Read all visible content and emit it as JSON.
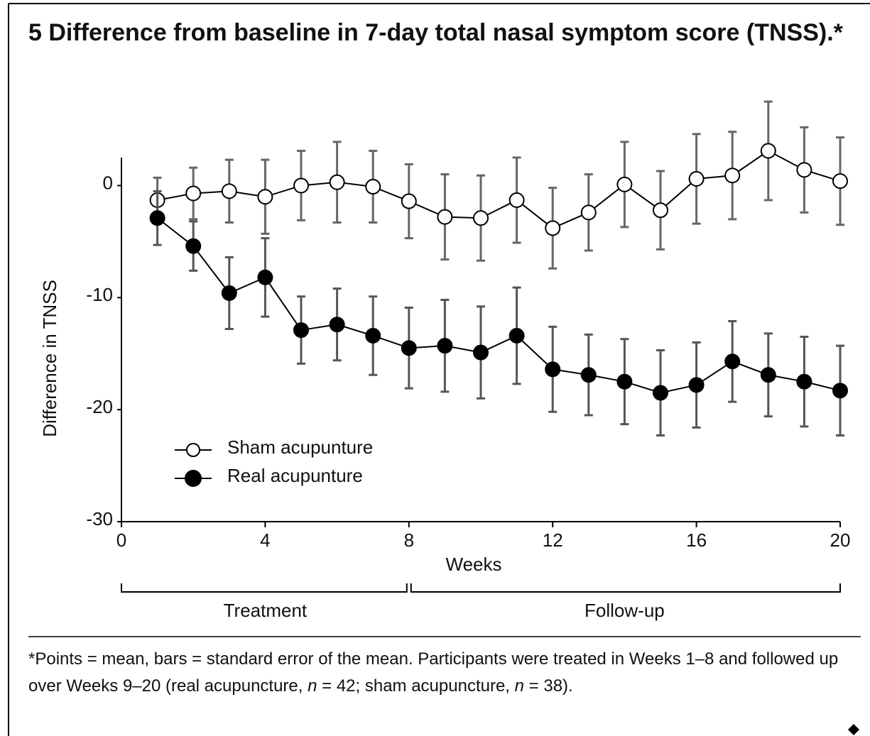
{
  "chart_data": {
    "type": "line",
    "title": "5 Difference from baseline in 7-day total nasal symptom score (TNSS).*",
    "x_label": "Weeks",
    "y_label": "Difference in TNSS",
    "x": [
      1,
      2,
      3,
      4,
      5,
      6,
      7,
      8,
      9,
      10,
      11,
      12,
      13,
      14,
      15,
      16,
      17,
      18,
      19,
      20
    ],
    "series": [
      {
        "name": "Sham acupunture",
        "color": "#000000",
        "fill": "#ffffff",
        "error_color": "#666666",
        "values": [
          -1.3,
          -0.7,
          -0.5,
          -1.0,
          0,
          0.3,
          -0.1,
          -1.4,
          -2.8,
          -2.9,
          -1.3,
          -3.8,
          -2.4,
          0.1,
          -2.2,
          0.6,
          0.9,
          3.1,
          1.4,
          0.4
        ],
        "errors": [
          2.0,
          2.3,
          2.8,
          3.3,
          3.1,
          3.6,
          3.2,
          3.3,
          3.8,
          3.8,
          3.8,
          3.6,
          3.4,
          3.8,
          3.5,
          4.0,
          3.9,
          4.4,
          3.8,
          3.9
        ]
      },
      {
        "name": "Real acupunture",
        "color": "#000000",
        "fill": "#000000",
        "error_color": "#555555",
        "values": [
          -2.9,
          -5.4,
          -9.6,
          -8.2,
          -12.9,
          -12.4,
          -13.4,
          -14.5,
          -14.3,
          -14.9,
          -13.4,
          -16.4,
          -16.9,
          -17.5,
          -18.5,
          -17.8,
          -15.7,
          -16.9,
          -17.5,
          -18.3
        ],
        "errors": [
          2.4,
          2.2,
          3.2,
          3.5,
          3.0,
          3.2,
          3.5,
          3.6,
          4.1,
          4.1,
          4.3,
          3.8,
          3.6,
          3.8,
          3.8,
          3.8,
          3.6,
          3.7,
          4.0,
          4.0
        ]
      }
    ],
    "xlim": [
      0,
      20
    ],
    "xticks": [
      0,
      4,
      8,
      12,
      16,
      20
    ],
    "ylim": [
      -30,
      2.5
    ],
    "yticks": [
      0,
      -10,
      -20,
      -30
    ],
    "legend": "left",
    "periods": [
      {
        "label": "Treatment",
        "start": 0,
        "end": 8
      },
      {
        "label": "Follow-up",
        "start": 8,
        "end": 20
      }
    ],
    "footnote": [
      "*Points = mean, bars = standard error of the mean. Participants were treated in Weeks 1–8 and followed up over Weeks 9–20 (real acupuncture, ",
      "n",
      " = 42; sham acupuncture, ",
      "n",
      " = 38)."
    ]
  }
}
